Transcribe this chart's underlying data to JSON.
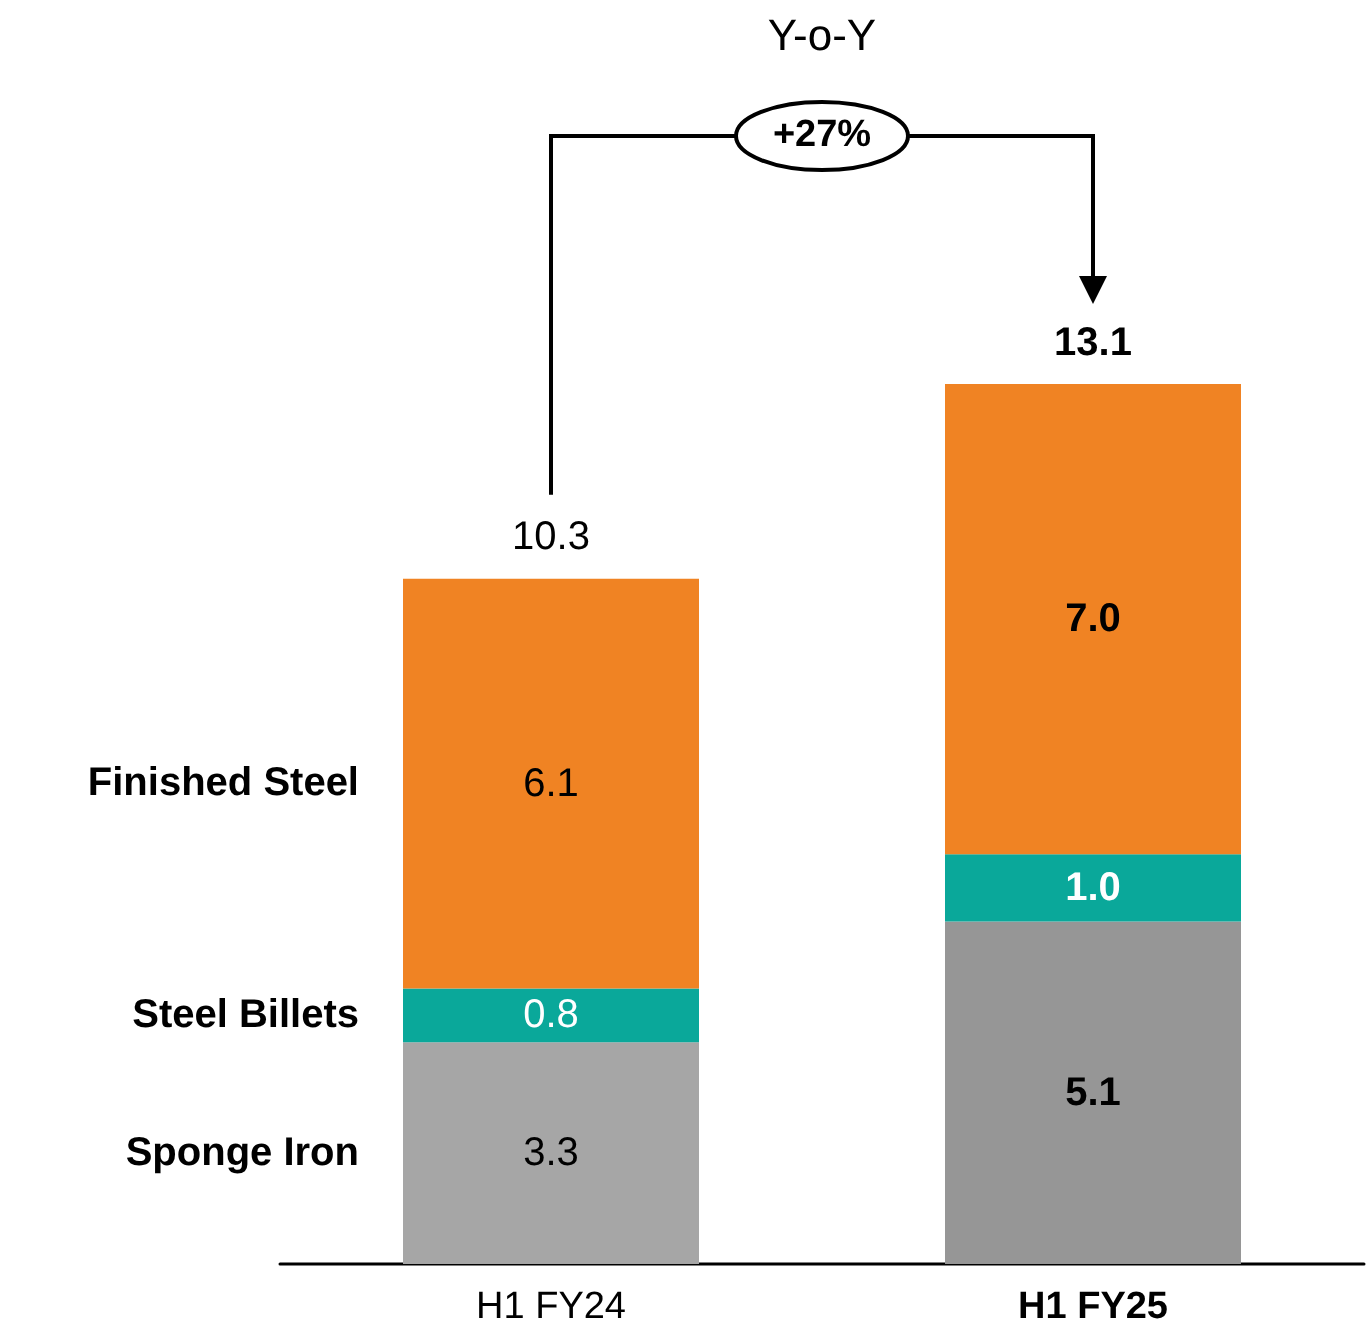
{
  "chart_data": {
    "type": "bar",
    "stacked": true,
    "legend": false,
    "categories": [
      "H1 FY24",
      "H1 FY25"
    ],
    "series": [
      {
        "name": "Sponge Iron",
        "colors": [
          "#a6a6a6",
          "#969696"
        ],
        "values": [
          3.3,
          5.1
        ],
        "value_labels": [
          "3.3",
          "5.1"
        ]
      },
      {
        "name": "Steel Billets",
        "color": "#0aa89a",
        "values": [
          0.8,
          1.0
        ],
        "value_labels": [
          "0.8",
          "1.0"
        ]
      },
      {
        "name": "Finished Steel",
        "color": "#f08323",
        "values": [
          6.1,
          7.0
        ],
        "value_labels": [
          "6.1",
          "7.0"
        ]
      }
    ],
    "totals": [
      "10.3",
      "13.1"
    ],
    "annotations": [
      "Y-o-Y",
      "+27%"
    ]
  }
}
